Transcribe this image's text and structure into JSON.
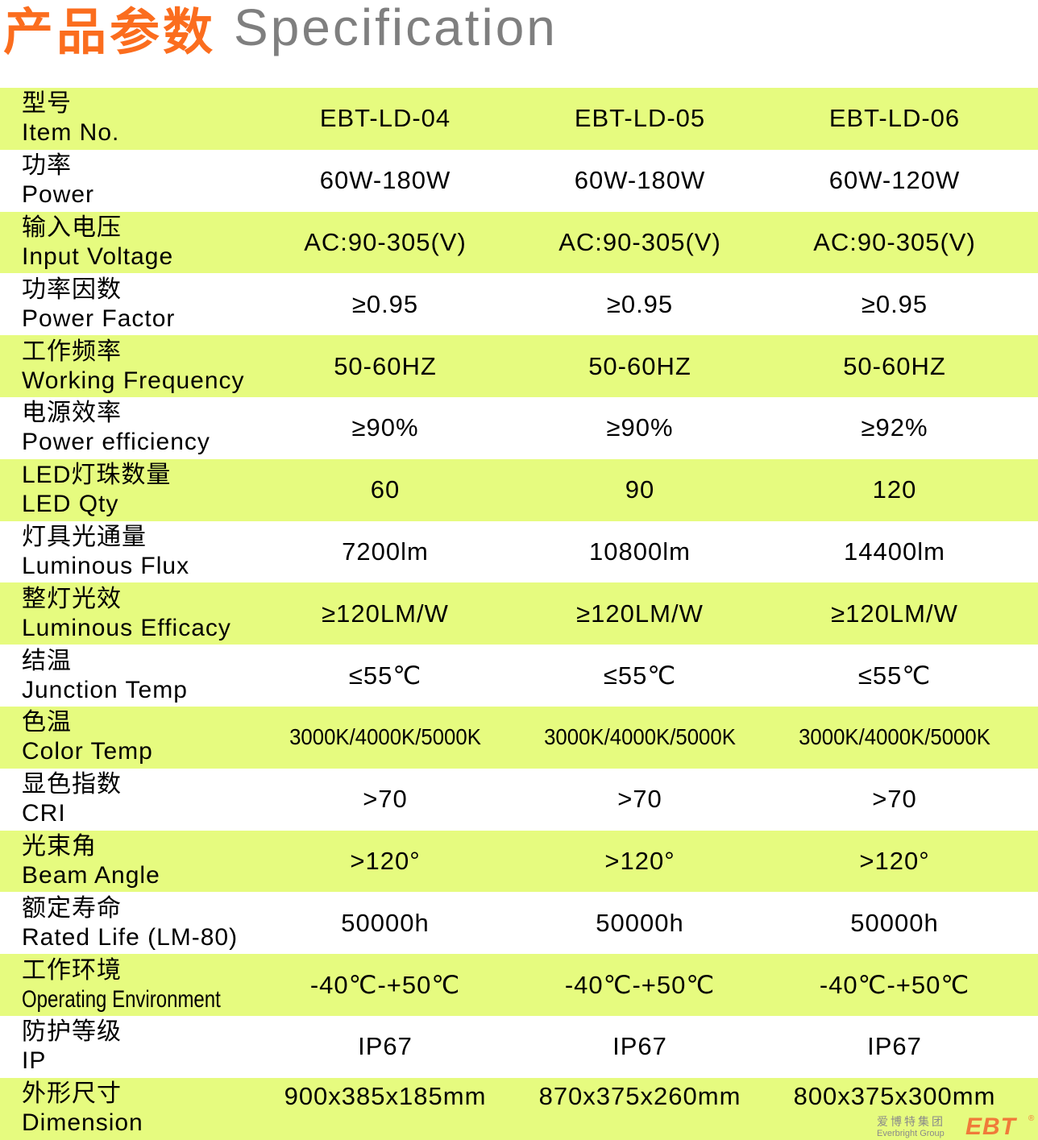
{
  "header": {
    "title_cn": "产品参数",
    "title_en": "Specification"
  },
  "colors": {
    "title_cn": "#fb6d1e",
    "title_en": "#7f7f7f",
    "row_highlight": "#e6fb7f",
    "logo": "#f07a3a"
  },
  "table": {
    "rows": [
      {
        "cn": "型号",
        "en": "Item No.",
        "values": [
          "EBT-LD-04",
          "EBT-LD-05",
          "EBT-LD-06"
        ]
      },
      {
        "cn": "功率",
        "en": "Power",
        "values": [
          "60W-180W",
          "60W-180W",
          "60W-120W"
        ]
      },
      {
        "cn": "输入电压",
        "en": "Input Voltage",
        "values": [
          "AC:90-305(V)",
          "AC:90-305(V)",
          "AC:90-305(V)"
        ]
      },
      {
        "cn": "功率因数",
        "en": "Power Factor",
        "values": [
          "≥0.95",
          "≥0.95",
          "≥0.95"
        ]
      },
      {
        "cn": "工作频率",
        "en": "Working Frequency",
        "values": [
          "50-60HZ",
          "50-60HZ",
          "50-60HZ"
        ]
      },
      {
        "cn": "电源效率",
        "en": "Power efficiency",
        "values": [
          "≥90%",
          "≥90%",
          "≥92%"
        ]
      },
      {
        "cn": "LED灯珠数量",
        "en": "LED Qty",
        "values": [
          "60",
          "90",
          "120"
        ]
      },
      {
        "cn": "灯具光通量",
        "en": "Luminous Flux",
        "values": [
          "7200lm",
          "10800lm",
          "14400lm"
        ]
      },
      {
        "cn": "整灯光效",
        "en": "Luminous Efficacy",
        "values": [
          "≥120LM/W",
          "≥120LM/W",
          "≥120LM/W"
        ]
      },
      {
        "cn": "结温",
        "en": "Junction Temp",
        "values": [
          "≤55℃",
          "≤55℃",
          "≤55℃"
        ]
      },
      {
        "cn": "色温",
        "en": "Color Temp",
        "values": [
          "3000K/4000K/5000K",
          "3000K/4000K/5000K",
          "3000K/4000K/5000K"
        ]
      },
      {
        "cn": "显色指数",
        "en": "CRI",
        "values": [
          ">70",
          ">70",
          ">70"
        ]
      },
      {
        "cn": "光束角",
        "en": "Beam Angle",
        "values": [
          ">120°",
          ">120°",
          ">120°"
        ]
      },
      {
        "cn": "额定寿命",
        "en": "Rated Life (LM-80)",
        "values": [
          "50000h",
          "50000h",
          "50000h"
        ]
      },
      {
        "cn": "工作环境",
        "en": "Operating Environment",
        "values": [
          "-40℃-+50℃",
          "-40℃-+50℃",
          "-40℃-+50℃"
        ]
      },
      {
        "cn": "防护等级",
        "en": "IP",
        "values": [
          "IP67",
          "IP67",
          "IP67"
        ]
      },
      {
        "cn": "外形尺寸",
        "en": "Dimension",
        "values": [
          "900x385x185mm",
          "870x375x260mm",
          "800x375x300mm"
        ]
      }
    ]
  },
  "logo": {
    "cn": "爱博特集团",
    "en": "Everbright Group",
    "brand": "EBT",
    "reg": "®"
  }
}
